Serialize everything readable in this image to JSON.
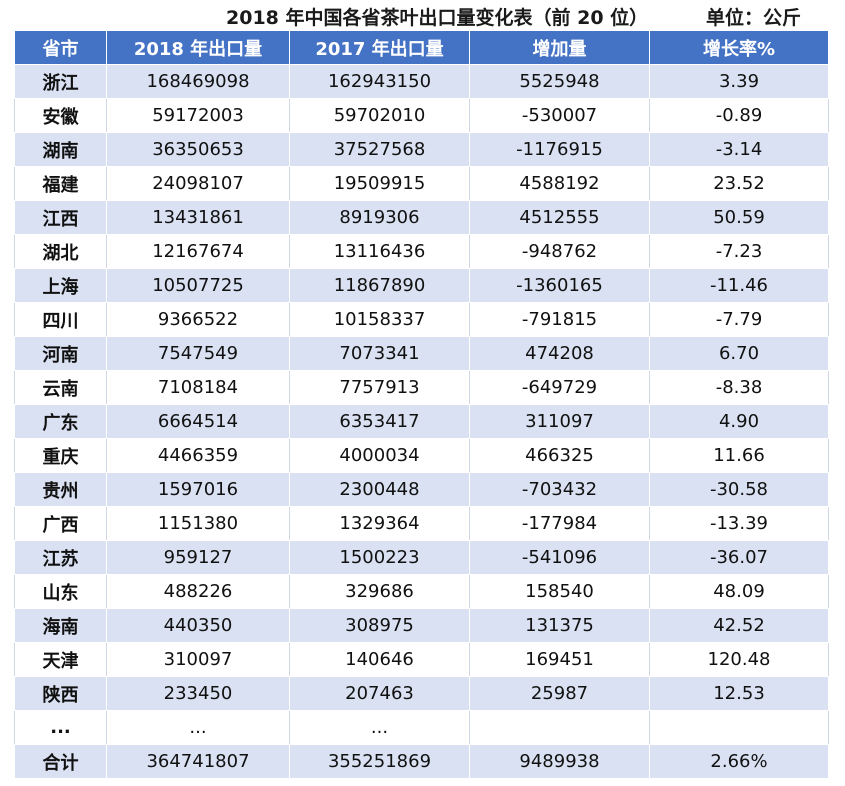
{
  "title": "2018 年中国各省茶叶出口量变化表（前 20 位）",
  "unit": "单位：公斤",
  "headers": [
    "省市",
    "2018 年出口量",
    "2017 年出口量",
    "增加量",
    "增长率%"
  ],
  "rows": [
    [
      "浙江",
      "168469098",
      "162943150",
      "5525948",
      "3.39"
    ],
    [
      "安徽",
      "59172003",
      "59702010",
      "-530007",
      "-0.89"
    ],
    [
      "湖南",
      "36350653",
      "37527568",
      "-1176915",
      "-3.14"
    ],
    [
      "福建",
      "24098107",
      "19509915",
      "4588192",
      "23.52"
    ],
    [
      "江西",
      "13431861",
      "8919306",
      "4512555",
      "50.59"
    ],
    [
      "湖北",
      "12167674",
      "13116436",
      "-948762",
      "-7.23"
    ],
    [
      "上海",
      "10507725",
      "11867890",
      "-1360165",
      "-11.46"
    ],
    [
      "四川",
      "9366522",
      "10158337",
      "-791815",
      "-7.79"
    ],
    [
      "河南",
      "7547549",
      "7073341",
      "474208",
      "6.70"
    ],
    [
      "云南",
      "7108184",
      "7757913",
      "-649729",
      "-8.38"
    ],
    [
      "广东",
      "6664514",
      "6353417",
      "311097",
      "4.90"
    ],
    [
      "重庆",
      "4466359",
      "4000034",
      "466325",
      "11.66"
    ],
    [
      "贵州",
      "1597016",
      "2300448",
      "-703432",
      "-30.58"
    ],
    [
      "广西",
      "1151380",
      "1329364",
      "-177984",
      "-13.39"
    ],
    [
      "江苏",
      "959127",
      "1500223",
      "-541096",
      "-36.07"
    ],
    [
      "山东",
      "488226",
      "329686",
      "158540",
      "48.09"
    ],
    [
      "海南",
      "440350",
      "308975",
      "131375",
      "42.52"
    ],
    [
      "天津",
      "310097",
      "140646",
      "169451",
      "120.48"
    ],
    [
      "陕西",
      "233450",
      "207463",
      "25987",
      "12.53"
    ],
    [
      "...",
      "...",
      "...",
      "",
      ""
    ],
    [
      "合计",
      "364741807",
      "355251869",
      "9489938",
      "2.66%"
    ]
  ]
}
